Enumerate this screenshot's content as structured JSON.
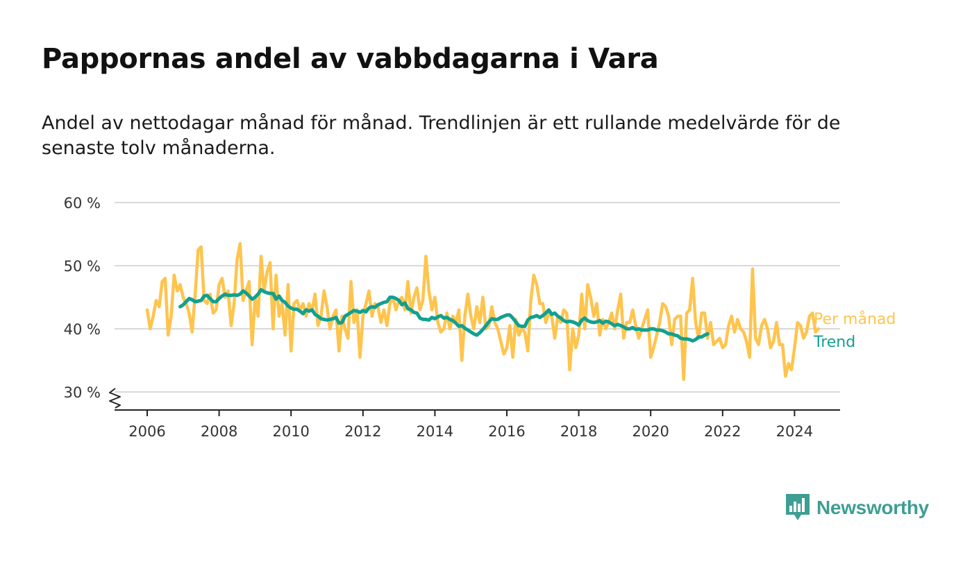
{
  "title": "Pappornas andel av vabbdagarna i Vara",
  "subtitle": "Andel av nettodagar månad för månad. Trendlinjen är ett rullande medelvärde för de senaste tolv månaderna.",
  "brand": {
    "name": "Newsworthy",
    "color": "#3e9e94",
    "icon": "newsworthy-logo-icon"
  },
  "chart_data": {
    "type": "line",
    "title": "Pappornas andel av vabbdagarna i Vara",
    "xlabel": "",
    "ylabel": "",
    "xlim": [
      2005.7,
      2025.3
    ],
    "ylim": [
      27,
      60
    ],
    "y_axis_break": true,
    "grid": true,
    "x_ticks": [
      2006,
      2008,
      2010,
      2012,
      2014,
      2016,
      2018,
      2020,
      2022,
      2024
    ],
    "x_tick_labels": [
      "2006",
      "2008",
      "2010",
      "2012",
      "2014",
      "2016",
      "2018",
      "2020",
      "2022",
      "2024"
    ],
    "y_ticks": [
      30,
      40,
      50,
      60
    ],
    "y_tick_labels": [
      "30 %",
      "40 %",
      "50 %",
      "60 %"
    ],
    "legend": "inline-right",
    "series": [
      {
        "name": "Per månad",
        "color": "#ffc44d",
        "x_start": 2006.0,
        "x_step": 0.08333,
        "values": [
          43,
          40,
          42,
          44.5,
          43.5,
          47.5,
          48,
          39,
          42,
          48.5,
          46,
          47,
          45,
          44,
          42.5,
          39.5,
          45.5,
          52.5,
          53,
          44.5,
          44,
          45.5,
          42.5,
          43,
          47,
          48,
          45,
          46,
          40.5,
          44,
          51,
          53.5,
          44.5,
          46,
          47.5,
          37.5,
          45,
          42,
          51.5,
          46,
          49,
          50.5,
          40,
          48.5,
          42,
          44,
          39,
          47,
          36.5,
          44,
          44.5,
          43,
          44,
          42,
          44,
          43,
          45.5,
          40.5,
          42,
          46,
          43.5,
          40,
          42,
          43,
          36.5,
          42,
          40,
          38.5,
          47.5,
          41,
          43,
          35.5,
          42,
          44,
          46,
          42,
          44,
          43.5,
          41,
          43,
          40.5,
          44,
          45,
          43,
          44.5,
          45,
          43,
          47.5,
          42.5,
          45,
          46.5,
          43,
          44.5,
          51.5,
          46,
          43,
          45,
          41,
          39.5,
          40,
          42.5,
          40,
          42,
          41,
          43,
          35,
          42,
          45.5,
          42,
          40,
          43.5,
          41,
          45,
          40,
          40.5,
          43.5,
          41,
          40,
          38,
          36,
          37,
          40.5,
          35.5,
          41.5,
          39,
          40,
          39.5,
          36.5,
          44.5,
          48.5,
          47,
          44,
          44,
          41,
          42.5,
          42,
          38.5,
          42,
          41,
          43,
          42.5,
          33.5,
          40,
          37,
          39,
          45.5,
          40,
          47,
          45,
          42,
          44,
          39,
          41.5,
          40,
          41,
          42.5,
          40,
          43,
          45.5,
          38.5,
          41,
          41,
          43,
          40.5,
          38.5,
          40,
          41.5,
          43,
          35.5,
          37,
          39,
          41,
          44,
          43.5,
          42,
          37.5,
          41.5,
          42,
          42,
          32,
          42.5,
          43,
          48,
          41,
          38.5,
          42.5,
          42.5,
          38.5,
          41,
          37.5,
          38,
          38.5,
          37,
          37.5,
          40.5,
          42,
          39.5,
          41.5,
          40,
          39.5,
          38,
          35.5,
          49.5,
          38.5,
          37.5,
          40.5,
          41.5,
          40,
          37,
          38,
          41,
          37.5,
          37.5,
          32.5,
          34.5,
          33.5,
          37,
          41,
          40.5,
          38.5,
          39.5,
          42,
          42.5,
          39.5,
          40
        ]
      },
      {
        "name": "Trend",
        "color": "#12a08f",
        "x_start": 2006.9167,
        "x_step": 0.08333,
        "values": [
          43.5,
          43.8,
          44.3,
          44.8,
          44.6,
          44.3,
          44.4,
          44.5,
          45.2,
          45.3,
          44.8,
          44.3,
          44.3,
          44.8,
          45.2,
          45.5,
          45.3,
          45.3,
          45.4,
          45.3,
          45.5,
          46,
          45.7,
          45.2,
          44.7,
          45,
          45.5,
          46.2,
          45.9,
          45.7,
          45.6,
          45.6,
          44.7,
          45.2,
          44.5,
          44.2,
          43.6,
          43.3,
          43.1,
          43.1,
          42.8,
          42.4,
          43,
          42.8,
          43,
          42.3,
          42,
          41.6,
          41.5,
          41.4,
          41.5,
          41.6,
          41.8,
          40.9,
          41,
          42,
          42.3,
          42.6,
          42.9,
          42.8,
          42.6,
          42.9,
          42.7,
          43.3,
          43.5,
          43.4,
          43.8,
          44,
          44.2,
          44.3,
          45,
          45,
          44.8,
          44.5,
          43.8,
          44.1,
          43.2,
          43,
          42.6,
          42.5,
          41.7,
          41.5,
          41.5,
          41.4,
          41.8,
          41.6,
          41.9,
          42.1,
          41.7,
          41.8,
          41.5,
          41.3,
          40.9,
          40.4,
          40.5,
          40.1,
          39.8,
          39.5,
          39.2,
          39,
          39.4,
          39.9,
          40.5,
          41.1,
          41.6,
          41.5,
          41.5,
          41.8,
          42,
          42.2,
          42.2,
          41.7,
          41.1,
          40.5,
          40.4,
          40.4,
          41.4,
          41.8,
          41.9,
          42.1,
          41.8,
          42.1,
          42.5,
          43,
          42.3,
          42.5,
          42,
          41.7,
          41.3,
          41.1,
          41.2,
          41.1,
          40.9,
          40.6,
          41.4,
          41.7,
          41.3,
          41.1,
          41,
          41.1,
          41.3,
          40.9,
          41.2,
          41.1,
          40.8,
          40.5,
          40.7,
          40.5,
          40.3,
          40,
          40,
          40.2,
          39.9,
          40,
          39.8,
          39.8,
          39.8,
          40,
          40,
          39.8,
          39.8,
          39.7,
          39.5,
          39.2,
          39.2,
          39,
          38.9,
          38.5,
          38.4,
          38.4,
          38.3,
          38.1,
          38.3,
          38.7,
          38.7,
          39,
          39.2
        ]
      }
    ]
  }
}
